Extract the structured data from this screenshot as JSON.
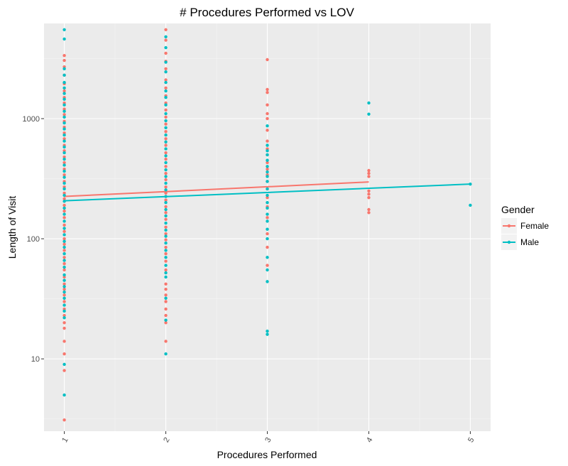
{
  "chart_data": {
    "type": "scatter",
    "title": "# Procedures Performed vs LOV",
    "xlabel": "Procedures Performed",
    "ylabel": "Length of Visit",
    "x_ticks": [
      "1",
      "2",
      "3",
      "4",
      "5"
    ],
    "y_ticks": [
      {
        "value": 10,
        "label": "10"
      },
      {
        "value": 100,
        "label": "100"
      },
      {
        "value": 1000,
        "label": "1000"
      }
    ],
    "y_scale": "log10",
    "xlim": [
      0.8,
      5.2
    ],
    "ylim": [
      2.5,
      6200
    ],
    "grid": true,
    "legend_title": "Gender",
    "legend_position": "right",
    "series": [
      {
        "name": "Female",
        "color": "#F8766D",
        "points": [
          [
            1,
            3.1
          ],
          [
            1,
            8
          ],
          [
            1,
            11
          ],
          [
            1,
            14
          ],
          [
            1,
            18
          ],
          [
            1,
            20
          ],
          [
            1,
            23
          ],
          [
            1,
            26
          ],
          [
            1,
            30
          ],
          [
            1,
            34
          ],
          [
            1,
            38
          ],
          [
            1,
            42
          ],
          [
            1,
            48
          ],
          [
            1,
            55
          ],
          [
            1,
            62
          ],
          [
            1,
            70
          ],
          [
            1,
            80
          ],
          [
            1,
            90
          ],
          [
            1,
            100
          ],
          [
            1,
            115
          ],
          [
            1,
            130
          ],
          [
            1,
            150
          ],
          [
            1,
            170
          ],
          [
            1,
            190
          ],
          [
            1,
            215
          ],
          [
            1,
            240
          ],
          [
            1,
            270
          ],
          [
            1,
            300
          ],
          [
            1,
            340
          ],
          [
            1,
            380
          ],
          [
            1,
            430
          ],
          [
            1,
            480
          ],
          [
            1,
            540
          ],
          [
            1,
            600
          ],
          [
            1,
            680
          ],
          [
            1,
            760
          ],
          [
            1,
            850
          ],
          [
            1,
            950
          ],
          [
            1,
            1080
          ],
          [
            1,
            1200
          ],
          [
            1,
            1350
          ],
          [
            1,
            1500
          ],
          [
            1,
            1700
          ],
          [
            1,
            1950
          ],
          [
            1,
            2300
          ],
          [
            1,
            2700
          ],
          [
            1,
            3050
          ],
          [
            1,
            3350
          ],
          [
            2,
            14
          ],
          [
            2,
            20
          ],
          [
            2,
            23
          ],
          [
            2,
            26
          ],
          [
            2,
            30
          ],
          [
            2,
            34
          ],
          [
            2,
            38
          ],
          [
            2,
            42
          ],
          [
            2,
            55
          ],
          [
            2,
            65
          ],
          [
            2,
            75
          ],
          [
            2,
            85
          ],
          [
            2,
            98
          ],
          [
            2,
            110
          ],
          [
            2,
            125
          ],
          [
            2,
            145
          ],
          [
            2,
            165
          ],
          [
            2,
            185
          ],
          [
            2,
            210
          ],
          [
            2,
            240
          ],
          [
            2,
            270
          ],
          [
            2,
            310
          ],
          [
            2,
            350
          ],
          [
            2,
            400
          ],
          [
            2,
            460
          ],
          [
            2,
            520
          ],
          [
            2,
            600
          ],
          [
            2,
            680
          ],
          [
            2,
            780
          ],
          [
            2,
            900
          ],
          [
            2,
            1030
          ],
          [
            2,
            1180
          ],
          [
            2,
            1350
          ],
          [
            2,
            1550
          ],
          [
            2,
            1800
          ],
          [
            2,
            2100
          ],
          [
            2,
            2600
          ],
          [
            2,
            3000
          ],
          [
            2,
            3500
          ],
          [
            2,
            4500
          ],
          [
            2,
            5500
          ],
          [
            3,
            60
          ],
          [
            3,
            85
          ],
          [
            3,
            110
          ],
          [
            3,
            150
          ],
          [
            3,
            185
          ],
          [
            3,
            220
          ],
          [
            3,
            260
          ],
          [
            3,
            300
          ],
          [
            3,
            340
          ],
          [
            3,
            380
          ],
          [
            3,
            430
          ],
          [
            3,
            500
          ],
          [
            3,
            560
          ],
          [
            3,
            650
          ],
          [
            3,
            800
          ],
          [
            3,
            1000
          ],
          [
            3,
            1100
          ],
          [
            3,
            1300
          ],
          [
            3,
            1650
          ],
          [
            3,
            1750
          ],
          [
            3,
            3100
          ],
          [
            4,
            165
          ],
          [
            4,
            175
          ],
          [
            4,
            220
          ],
          [
            4,
            235
          ],
          [
            4,
            250
          ],
          [
            4,
            330
          ],
          [
            4,
            350
          ],
          [
            4,
            370
          ]
        ],
        "trend": [
          [
            1,
            225
          ],
          [
            4,
            297
          ]
        ]
      },
      {
        "name": "Male",
        "color": "#00BFC4",
        "points": [
          [
            1,
            5
          ],
          [
            1,
            9
          ],
          [
            1,
            22
          ],
          [
            1,
            25
          ],
          [
            1,
            28
          ],
          [
            1,
            32
          ],
          [
            1,
            36
          ],
          [
            1,
            40
          ],
          [
            1,
            45
          ],
          [
            1,
            50
          ],
          [
            1,
            58
          ],
          [
            1,
            66
          ],
          [
            1,
            75
          ],
          [
            1,
            85
          ],
          [
            1,
            95
          ],
          [
            1,
            108
          ],
          [
            1,
            122
          ],
          [
            1,
            140
          ],
          [
            1,
            160
          ],
          [
            1,
            180
          ],
          [
            1,
            205
          ],
          [
            1,
            230
          ],
          [
            1,
            260
          ],
          [
            1,
            290
          ],
          [
            1,
            325
          ],
          [
            1,
            365
          ],
          [
            1,
            410
          ],
          [
            1,
            460
          ],
          [
            1,
            520
          ],
          [
            1,
            580
          ],
          [
            1,
            650
          ],
          [
            1,
            730
          ],
          [
            1,
            820
          ],
          [
            1,
            920
          ],
          [
            1,
            1030
          ],
          [
            1,
            1150
          ],
          [
            1,
            1300
          ],
          [
            1,
            1450
          ],
          [
            1,
            1620
          ],
          [
            1,
            1800
          ],
          [
            1,
            2000
          ],
          [
            1,
            2300
          ],
          [
            1,
            2600
          ],
          [
            1,
            4600
          ],
          [
            1,
            5500
          ],
          [
            2,
            11
          ],
          [
            2,
            21
          ],
          [
            2,
            32
          ],
          [
            2,
            48
          ],
          [
            2,
            52
          ],
          [
            2,
            60
          ],
          [
            2,
            70
          ],
          [
            2,
            80
          ],
          [
            2,
            92
          ],
          [
            2,
            105
          ],
          [
            2,
            118
          ],
          [
            2,
            135
          ],
          [
            2,
            155
          ],
          [
            2,
            175
          ],
          [
            2,
            200
          ],
          [
            2,
            225
          ],
          [
            2,
            255
          ],
          [
            2,
            290
          ],
          [
            2,
            330
          ],
          [
            2,
            375
          ],
          [
            2,
            430
          ],
          [
            2,
            490
          ],
          [
            2,
            560
          ],
          [
            2,
            640
          ],
          [
            2,
            730
          ],
          [
            2,
            840
          ],
          [
            2,
            960
          ],
          [
            2,
            1100
          ],
          [
            2,
            1300
          ],
          [
            2,
            1500
          ],
          [
            2,
            1700
          ],
          [
            2,
            2000
          ],
          [
            2,
            2450
          ],
          [
            2,
            2950
          ],
          [
            2,
            3900
          ],
          [
            2,
            4800
          ],
          [
            3,
            16
          ],
          [
            3,
            17
          ],
          [
            3,
            44
          ],
          [
            3,
            55
          ],
          [
            3,
            70
          ],
          [
            3,
            100
          ],
          [
            3,
            120
          ],
          [
            3,
            140
          ],
          [
            3,
            160
          ],
          [
            3,
            180
          ],
          [
            3,
            200
          ],
          [
            3,
            230
          ],
          [
            3,
            260
          ],
          [
            3,
            300
          ],
          [
            3,
            330
          ],
          [
            3,
            360
          ],
          [
            3,
            400
          ],
          [
            3,
            450
          ],
          [
            3,
            500
          ],
          [
            3,
            540
          ],
          [
            3,
            600
          ],
          [
            3,
            870
          ],
          [
            4,
            1090
          ],
          [
            4,
            1350
          ],
          [
            5,
            190
          ],
          [
            5,
            285
          ]
        ],
        "trend": [
          [
            1,
            207
          ],
          [
            5,
            285
          ]
        ]
      }
    ]
  }
}
